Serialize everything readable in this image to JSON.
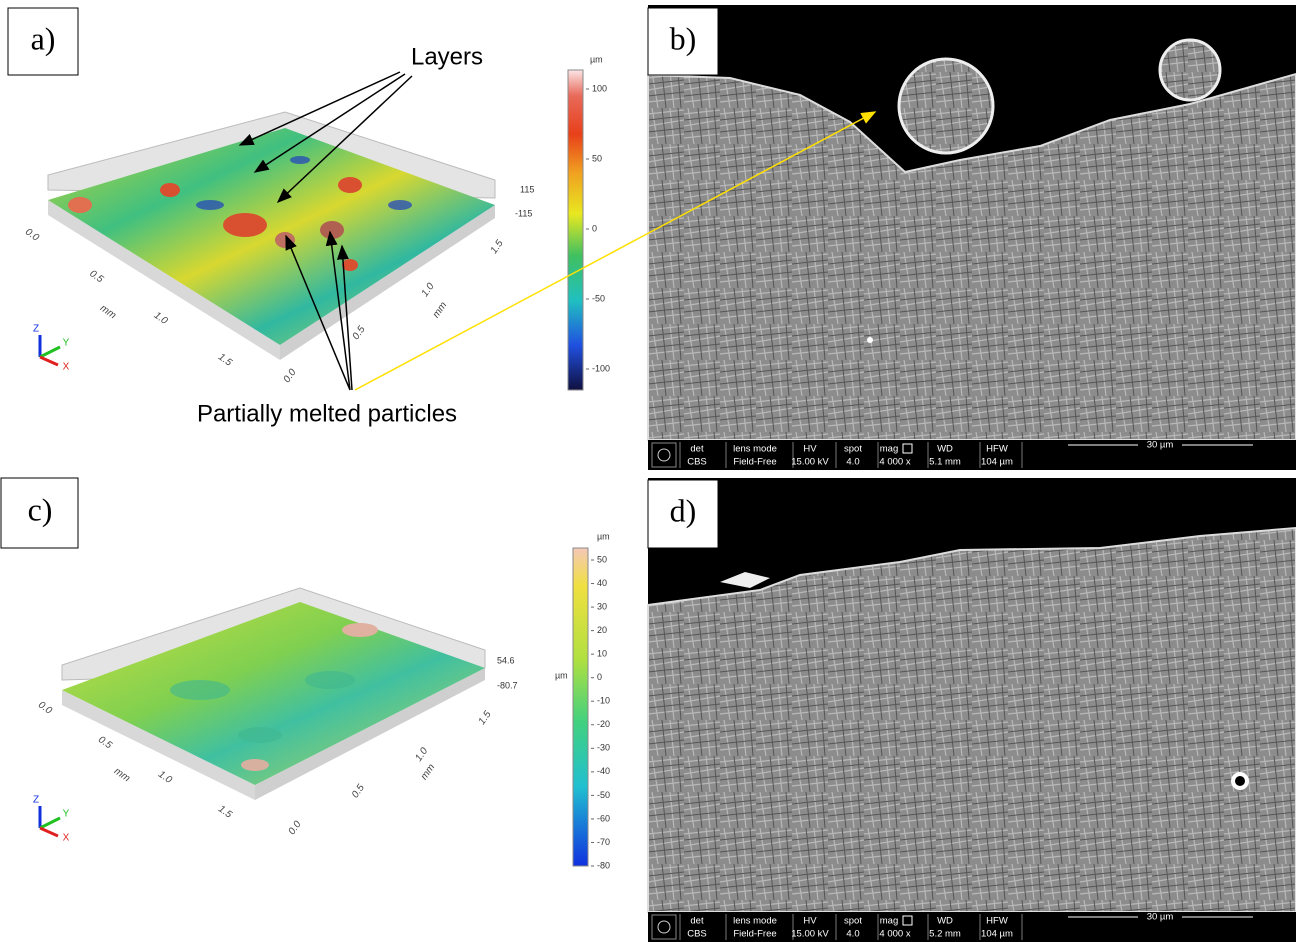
{
  "panels": [
    {
      "label": "a)",
      "annotations": [
        "Layers",
        "Partially melted particles"
      ],
      "colorbar": {
        "unit": "µm",
        "ticks": [
          "100",
          "50",
          "0",
          "-50",
          "-100"
        ]
      },
      "z_range": [
        "115",
        "-115"
      ],
      "axis_left": {
        "ticks": [
          "0.0",
          "0.5",
          "1.0",
          "1.5"
        ],
        "unit": "mm"
      },
      "axis_right": {
        "ticks": [
          "1.5",
          "1.0",
          "0.5",
          "0.0"
        ],
        "unit": "mm"
      },
      "triad": [
        "Z",
        "Y",
        "X"
      ]
    },
    {
      "label": "b)",
      "info": {
        "headers": [
          "det",
          "lens mode",
          "HV",
          "spot",
          "mag",
          "WD",
          "HFW"
        ],
        "values": [
          "CBS",
          "Field-Free",
          "15.00 kV",
          "4.0",
          "4 000 x",
          "5.1 mm",
          "104 µm"
        ]
      },
      "scale": "30 µm"
    },
    {
      "label": "c)",
      "colorbar": {
        "unit": "µm",
        "side_unit": "µm",
        "ticks": [
          "50",
          "40",
          "30",
          "20",
          "10",
          "0",
          "-10",
          "-20",
          "-30",
          "-40",
          "-50",
          "-60",
          "-70",
          "-80"
        ]
      },
      "z_range": [
        "54.6",
        "-80.7"
      ],
      "axis_left": {
        "ticks": [
          "0.0",
          "0.5",
          "1.0",
          "1.5"
        ],
        "unit": "mm"
      },
      "axis_right": {
        "ticks": [
          "1.5",
          "1.0",
          "0.5",
          "0.0"
        ],
        "unit": "mm"
      },
      "triad": [
        "Z",
        "Y",
        "X"
      ]
    },
    {
      "label": "d)",
      "info": {
        "headers": [
          "det",
          "lens mode",
          "HV",
          "spot",
          "mag",
          "WD",
          "HFW"
        ],
        "values": [
          "CBS",
          "Field-Free",
          "15.00 kV",
          "4.0",
          "4 000 x",
          "5.2 mm",
          "104 µm"
        ]
      },
      "scale": "30 µm"
    }
  ]
}
